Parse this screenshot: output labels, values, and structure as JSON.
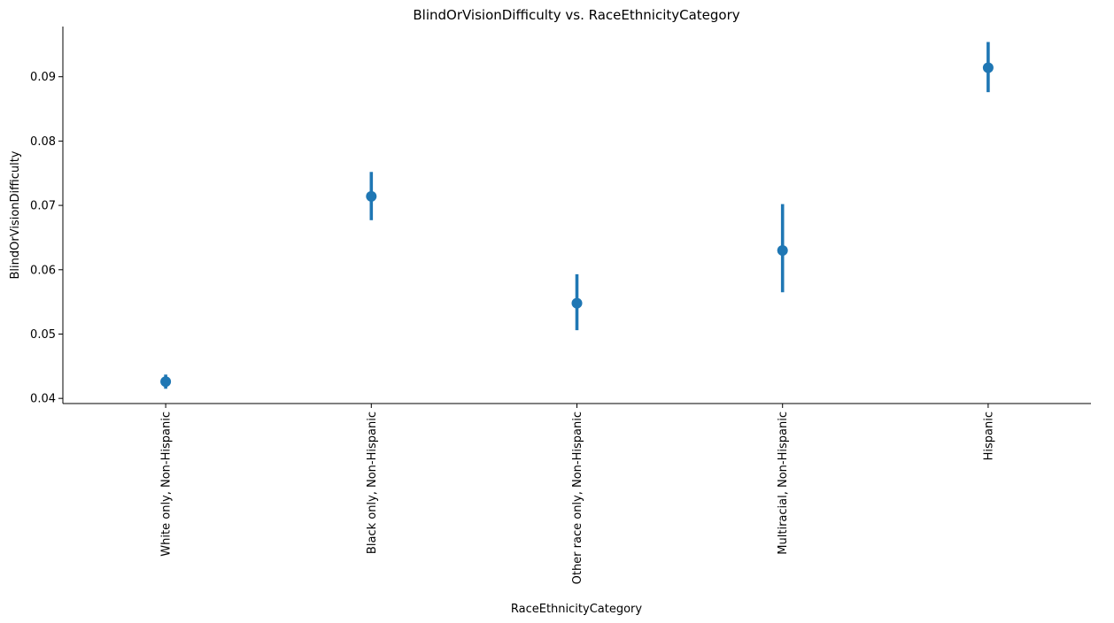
{
  "chart_data": {
    "type": "scatter",
    "title": "BlindOrVisionDifficulty vs. RaceEthnicityCategory",
    "xlabel": "RaceEthnicityCategory",
    "ylabel": "BlindOrVisionDifficulty",
    "categories": [
      "White only, Non-Hispanic",
      "Black only, Non-Hispanic",
      "Other race only, Non-Hispanic",
      "Multiracial, Non-Hispanic",
      "Hispanic"
    ],
    "values": [
      0.0426,
      0.0714,
      0.0548,
      0.063,
      0.0914
    ],
    "ci_low": [
      0.0415,
      0.0677,
      0.0506,
      0.0565,
      0.0876
    ],
    "ci_high": [
      0.0437,
      0.0752,
      0.0593,
      0.0702,
      0.0954
    ],
    "yticks": [
      "0.04",
      "0.05",
      "0.06",
      "0.07",
      "0.08",
      "0.09"
    ],
    "ylim": [
      0.0392,
      0.0978
    ],
    "grid": false,
    "color": "#1f77b4"
  }
}
